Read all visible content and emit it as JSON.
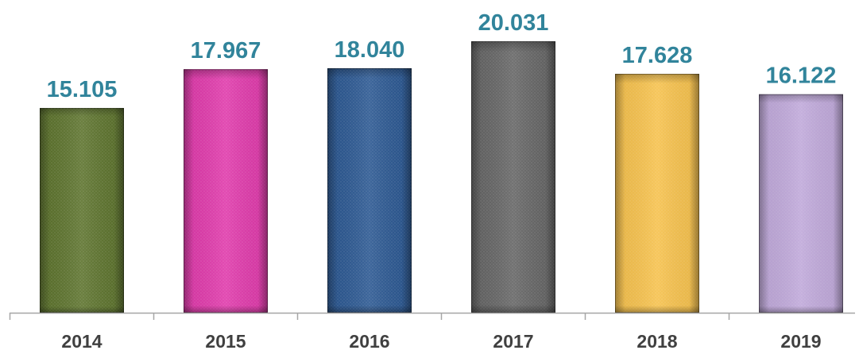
{
  "chart_data": {
    "type": "bar",
    "categories": [
      "2014",
      "2015",
      "2016",
      "2017",
      "2018",
      "2019"
    ],
    "values": [
      15105,
      17967,
      18040,
      20031,
      17628,
      16122
    ],
    "value_labels": [
      "15.105",
      "17.967",
      "18.040",
      "20.031",
      "17.628",
      "16.122"
    ],
    "colors": [
      "#5f7530",
      "#e03cac",
      "#2e5a93",
      "#676767",
      "#f6c24f",
      "#c0a9da"
    ],
    "ylim": [
      0,
      20031
    ],
    "grid": false,
    "legend": "none"
  }
}
